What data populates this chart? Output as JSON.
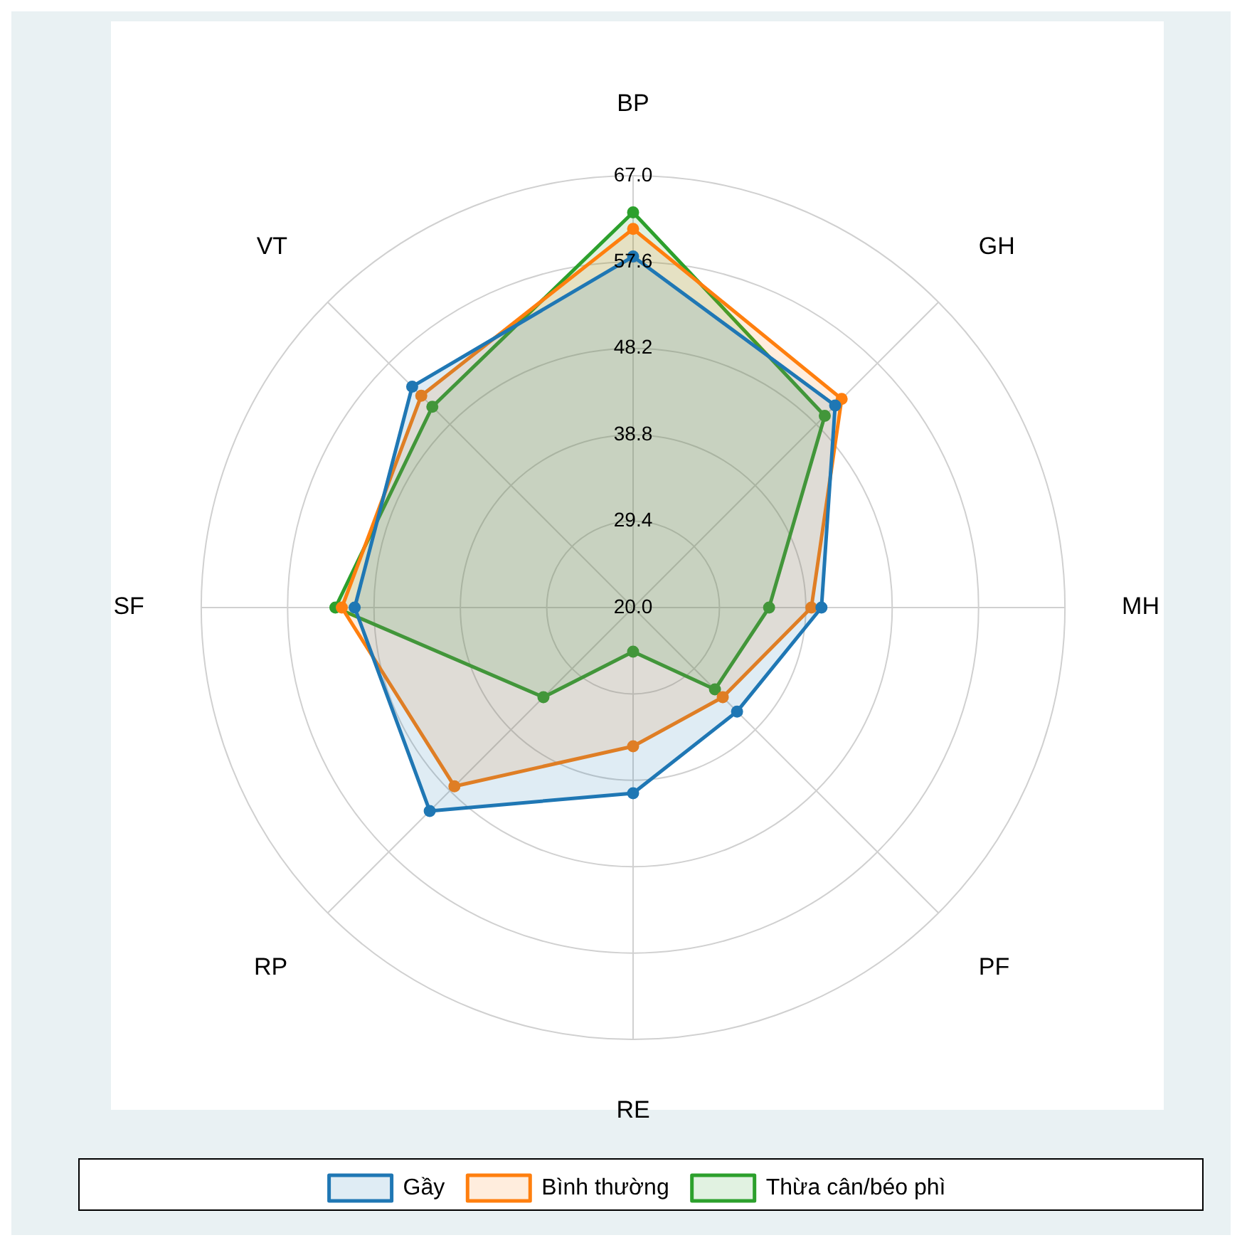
{
  "chart_data": {
    "type": "radar",
    "categories": [
      "BP",
      "GH",
      "MH",
      "PF",
      "RE",
      "RP",
      "SF",
      "VT"
    ],
    "series": [
      {
        "name": "Gầy",
        "color": "#1f77b4",
        "values": [
          58.2,
          51.1,
          40.5,
          36.0,
          40.2,
          51.3,
          50.3,
          54.0
        ]
      },
      {
        "name": "Bình thường",
        "color": "#ff7f0e",
        "values": [
          61.2,
          52.1,
          39.4,
          33.8,
          35.1,
          47.5,
          51.7,
          52.6
        ]
      },
      {
        "name": "Thừa cân/béo phì",
        "color": "#2ca02c",
        "values": [
          63.0,
          49.5,
          34.8,
          32.6,
          24.8,
          33.8,
          52.4,
          50.9
        ]
      }
    ],
    "ylim": [
      20,
      67
    ],
    "yticks": [
      {
        "value": 20,
        "label": "20.0"
      },
      {
        "value": 29.4,
        "label": "29.4"
      },
      {
        "value": 38.8,
        "label": "38.8"
      },
      {
        "value": 48.2,
        "label": "48.2"
      },
      {
        "value": 57.6,
        "label": "57.6"
      },
      {
        "value": 67,
        "label": "67.0"
      }
    ],
    "grid": true,
    "legend": "bottom",
    "marker": "circle"
  }
}
